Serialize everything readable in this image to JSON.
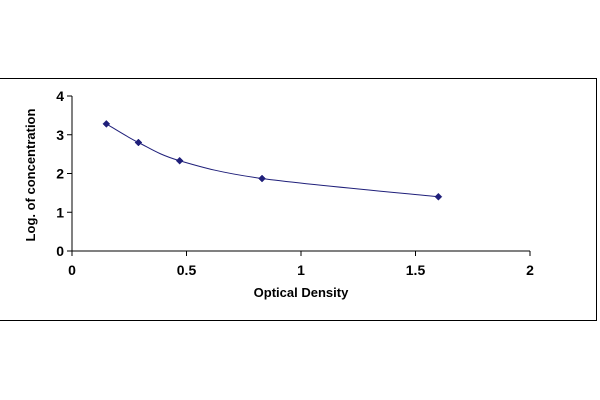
{
  "chart_data": {
    "type": "scatter",
    "title": "",
    "xlabel": "Optical Density",
    "ylabel": "Log. of concentration",
    "xlim": [
      0,
      2
    ],
    "ylim": [
      0,
      4
    ],
    "xticks": [
      "0",
      "0.5",
      "1",
      "1.5",
      "2"
    ],
    "yticks": [
      "0",
      "1",
      "2",
      "3",
      "4"
    ],
    "grid": false,
    "legend": "none",
    "smooth_line": true,
    "series": [
      {
        "x": [
          0.15,
          0.29,
          0.47,
          0.83,
          1.6
        ],
        "y": [
          3.28,
          2.8,
          2.33,
          1.87,
          1.4
        ],
        "marker_color": "#1f1f7a",
        "line_color": "#1f1f7a"
      }
    ]
  }
}
